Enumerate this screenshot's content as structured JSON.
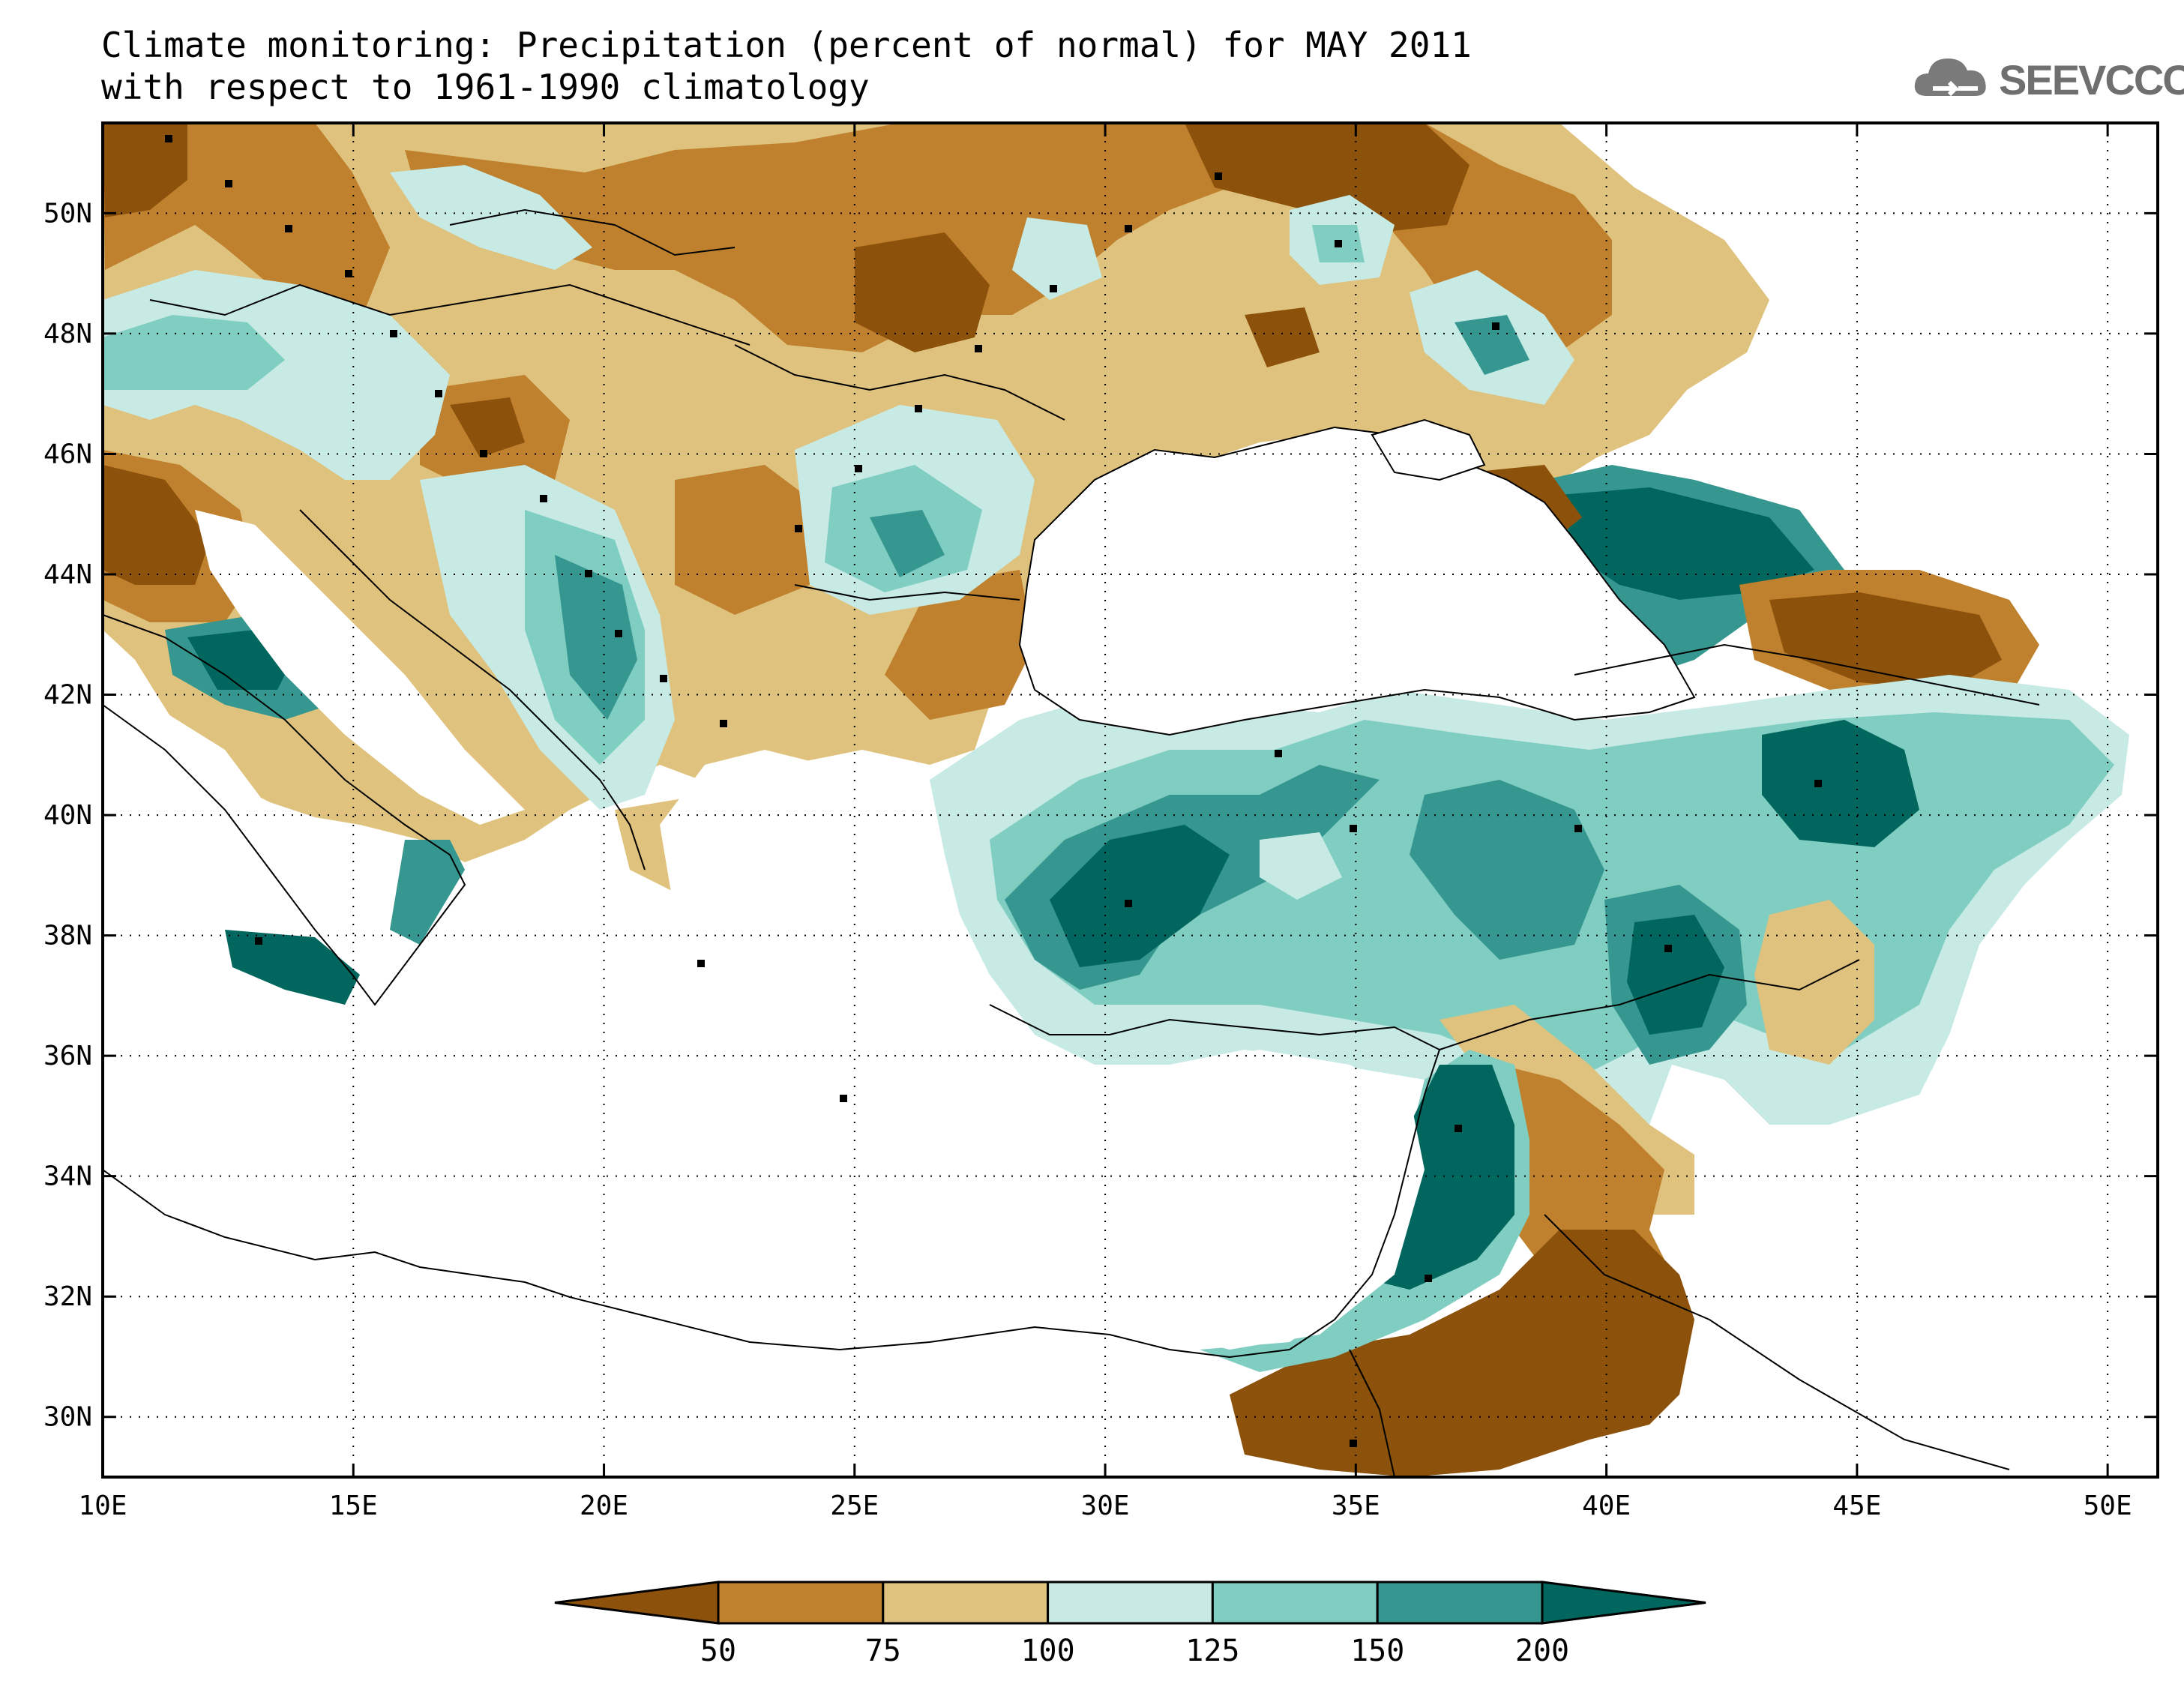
{
  "title": {
    "line1": "Climate monitoring: Precipitation (percent of normal) for MAY 2011",
    "line2": "with respect to 1961-1990 climatology"
  },
  "logo": {
    "text": "SEEVCCC",
    "icon": "cloud-icon"
  },
  "map": {
    "lon_range": [
      10,
      51
    ],
    "lat_range": [
      29,
      51.5
    ],
    "x_ticks": [
      {
        "value": 10,
        "label": "10E"
      },
      {
        "value": 15,
        "label": "15E"
      },
      {
        "value": 20,
        "label": "20E"
      },
      {
        "value": 25,
        "label": "25E"
      },
      {
        "value": 30,
        "label": "30E"
      },
      {
        "value": 35,
        "label": "35E"
      },
      {
        "value": 40,
        "label": "40E"
      },
      {
        "value": 45,
        "label": "45E"
      },
      {
        "value": 50,
        "label": "50E"
      }
    ],
    "y_ticks": [
      {
        "value": 30,
        "label": "30N"
      },
      {
        "value": 32,
        "label": "32N"
      },
      {
        "value": 34,
        "label": "34N"
      },
      {
        "value": 36,
        "label": "36N"
      },
      {
        "value": 38,
        "label": "38N"
      },
      {
        "value": 40,
        "label": "40N"
      },
      {
        "value": 42,
        "label": "42N"
      },
      {
        "value": 44,
        "label": "44N"
      },
      {
        "value": 46,
        "label": "46N"
      },
      {
        "value": 48,
        "label": "48N"
      },
      {
        "value": 50,
        "label": "50N"
      }
    ],
    "grid": true
  },
  "colorbar": {
    "labels": [
      "50",
      "75",
      "100",
      "125",
      "150",
      "200"
    ],
    "colors": [
      "#8c510a",
      "#bf812d",
      "#dfc27d",
      "#c7eae5",
      "#80cdc1",
      "#35978f",
      "#01665e"
    ]
  }
}
